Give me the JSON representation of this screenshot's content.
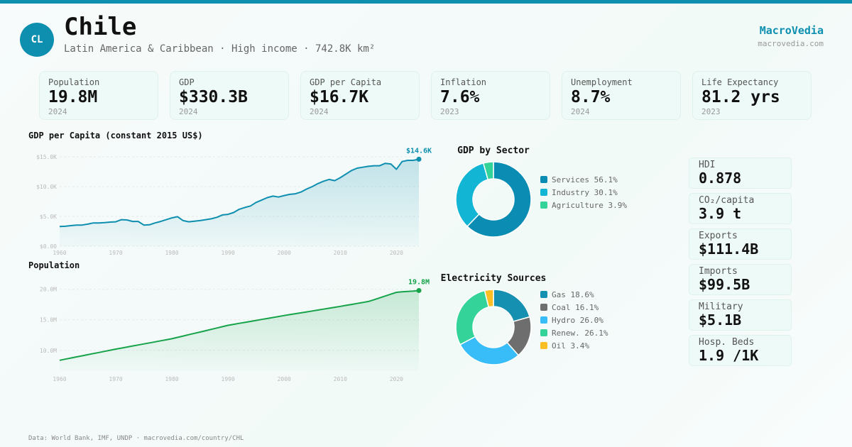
{
  "header": {
    "badge": "CL",
    "title": "Chile",
    "subtitle": "Latin America & Caribbean · High income · 742.8K km²",
    "brand": "MacroVedia",
    "site": "macrovedia.com"
  },
  "kpis": [
    {
      "label": "Population",
      "value": "19.8M",
      "year": "2024"
    },
    {
      "label": "GDP",
      "value": "$330.3B",
      "year": "2024"
    },
    {
      "label": "GDP per Capita",
      "value": "$16.7K",
      "year": "2024"
    },
    {
      "label": "Inflation",
      "value": "7.6%",
      "year": "2023"
    },
    {
      "label": "Unemployment",
      "value": "8.7%",
      "year": "2024"
    },
    {
      "label": "Life Expectancy",
      "value": "81.2 yrs",
      "year": "2023"
    }
  ],
  "stats": [
    {
      "label": "HDI",
      "value": "0.878"
    },
    {
      "label": "CO₂/capita",
      "value": "3.9 t"
    },
    {
      "label": "Exports",
      "value": "$111.4B"
    },
    {
      "label": "Imports",
      "value": "$99.5B"
    },
    {
      "label": "Military",
      "value": "$5.1B"
    },
    {
      "label": "Hosp. Beds",
      "value": "1.9 /1K"
    }
  ],
  "footer": "Data: World Bank, IMF, UNDP · macrovedia.com/country/CHL",
  "chart_data": [
    {
      "type": "area",
      "title": "GDP per Capita (constant 2015 US$)",
      "color": "#0e8fb0",
      "x": [
        1960,
        1961,
        1962,
        1963,
        1964,
        1965,
        1966,
        1967,
        1968,
        1969,
        1970,
        1971,
        1972,
        1973,
        1974,
        1975,
        1976,
        1977,
        1978,
        1979,
        1980,
        1981,
        1982,
        1983,
        1984,
        1985,
        1986,
        1987,
        1988,
        1989,
        1990,
        1991,
        1992,
        1993,
        1994,
        1995,
        1996,
        1997,
        1998,
        1999,
        2000,
        2001,
        2002,
        2003,
        2004,
        2005,
        2006,
        2007,
        2008,
        2009,
        2010,
        2011,
        2012,
        2013,
        2014,
        2015,
        2016,
        2017,
        2018,
        2019,
        2020,
        2021,
        2022,
        2023,
        2024
      ],
      "values": [
        3300,
        3350,
        3450,
        3550,
        3550,
        3700,
        3900,
        3900,
        3950,
        4050,
        4100,
        4450,
        4400,
        4150,
        4150,
        3550,
        3600,
        3900,
        4150,
        4450,
        4750,
        4950,
        4300,
        4100,
        4200,
        4300,
        4450,
        4600,
        4850,
        5250,
        5350,
        5650,
        6200,
        6500,
        6750,
        7350,
        7750,
        8150,
        8400,
        8250,
        8500,
        8700,
        8800,
        9100,
        9600,
        10000,
        10500,
        10900,
        11200,
        11000,
        11500,
        12100,
        12700,
        13100,
        13250,
        13400,
        13500,
        13500,
        13900,
        13800,
        12900,
        14200,
        14400,
        14400,
        14600
      ],
      "value_labels": [
        null,
        null,
        null,
        null,
        null,
        null,
        null,
        null,
        null,
        null,
        null,
        null,
        null,
        null,
        null,
        null,
        null,
        null,
        null,
        null,
        null,
        null,
        null,
        null,
        null,
        null,
        null,
        null,
        null,
        null,
        null,
        null,
        null,
        null,
        null,
        null,
        null,
        null,
        null,
        null,
        null,
        null,
        null,
        null,
        null,
        null,
        null,
        null,
        null,
        null,
        null,
        null,
        null,
        null,
        null,
        null,
        null,
        null,
        null,
        null,
        null,
        null,
        null,
        null,
        "$14.6K"
      ],
      "xlim": [
        1960,
        2024
      ],
      "xticks": [
        1960,
        1970,
        1980,
        1990,
        2000,
        2010,
        2020
      ],
      "ylim": [
        0,
        15000
      ],
      "yticks": [
        {
          "value": 0,
          "label": "$0.00"
        },
        {
          "value": 5000,
          "label": "$5.0K"
        },
        {
          "value": 10000,
          "label": "$10.0K"
        },
        {
          "value": 15000,
          "label": "$15.0K"
        }
      ],
      "grid": true
    },
    {
      "type": "area",
      "title": "Population",
      "color": "#16a34a",
      "x": [
        1960,
        1961,
        1962,
        1963,
        1964,
        1965,
        1966,
        1967,
        1968,
        1969,
        1970,
        1971,
        1972,
        1973,
        1974,
        1975,
        1976,
        1977,
        1978,
        1979,
        1980,
        1981,
        1982,
        1983,
        1984,
        1985,
        1986,
        1987,
        1988,
        1989,
        1990,
        1991,
        1992,
        1993,
        1994,
        1995,
        1996,
        1997,
        1998,
        1999,
        2000,
        2001,
        2002,
        2003,
        2004,
        2005,
        2006,
        2007,
        2008,
        2009,
        2010,
        2011,
        2012,
        2013,
        2014,
        2015,
        2016,
        2017,
        2018,
        2019,
        2020,
        2021,
        2022,
        2023,
        2024
      ],
      "values": [
        8370000,
        8550000,
        8740000,
        8920000,
        9100000,
        9290000,
        9470000,
        9650000,
        9830000,
        10020000,
        10200000,
        10370000,
        10540000,
        10710000,
        10880000,
        11050000,
        11220000,
        11390000,
        11560000,
        11730000,
        11900000,
        12120000,
        12340000,
        12560000,
        12780000,
        13000000,
        13220000,
        13440000,
        13660000,
        13880000,
        14100000,
        14260000,
        14420000,
        14580000,
        14740000,
        14900000,
        15060000,
        15220000,
        15380000,
        15540000,
        15700000,
        15850000,
        16000000,
        16150000,
        16300000,
        16450000,
        16600000,
        16750000,
        16900000,
        17050000,
        17200000,
        17360000,
        17520000,
        17680000,
        17840000,
        18000000,
        18300000,
        18600000,
        18900000,
        19200000,
        19500000,
        19600000,
        19650000,
        19700000,
        19800000
      ],
      "value_labels": [
        null,
        null,
        null,
        null,
        null,
        null,
        null,
        null,
        null,
        null,
        null,
        null,
        null,
        null,
        null,
        null,
        null,
        null,
        null,
        null,
        null,
        null,
        null,
        null,
        null,
        null,
        null,
        null,
        null,
        null,
        null,
        null,
        null,
        null,
        null,
        null,
        null,
        null,
        null,
        null,
        null,
        null,
        null,
        null,
        null,
        null,
        null,
        null,
        null,
        null,
        null,
        null,
        null,
        null,
        null,
        null,
        null,
        null,
        null,
        null,
        null,
        null,
        null,
        null,
        "19.8M"
      ],
      "xlim": [
        1960,
        2024
      ],
      "xticks": [
        1960,
        1970,
        1980,
        1990,
        2000,
        2010,
        2020
      ],
      "ylim": [
        6600000,
        20900000
      ],
      "yticks": [
        {
          "value": 10000000,
          "label": "10.0M"
        },
        {
          "value": 15000000,
          "label": "15.0M"
        },
        {
          "value": 20000000,
          "label": "20.0M"
        }
      ],
      "grid": true
    },
    {
      "type": "donut",
      "title": "GDP by Sector",
      "categories": [
        "Services",
        "Industry",
        "Agriculture"
      ],
      "values": [
        56.1,
        30.1,
        3.9
      ],
      "value_labels": [
        "56.1%",
        "30.1%",
        "3.9%"
      ],
      "colors": [
        "#0b8db3",
        "#13b5d4",
        "#34d399"
      ]
    },
    {
      "type": "donut",
      "title": "Electricity Sources",
      "categories": [
        "Gas",
        "Coal",
        "Hydro",
        "Renew.",
        "Oil"
      ],
      "values": [
        18.6,
        16.1,
        26.0,
        26.1,
        3.4
      ],
      "value_labels": [
        "18.6%",
        "16.1%",
        "26.0%",
        "26.1%",
        "3.4%"
      ],
      "colors": [
        "#1590b0",
        "#6e6e6e",
        "#38bdf8",
        "#34d399",
        "#fbbf24"
      ]
    }
  ]
}
